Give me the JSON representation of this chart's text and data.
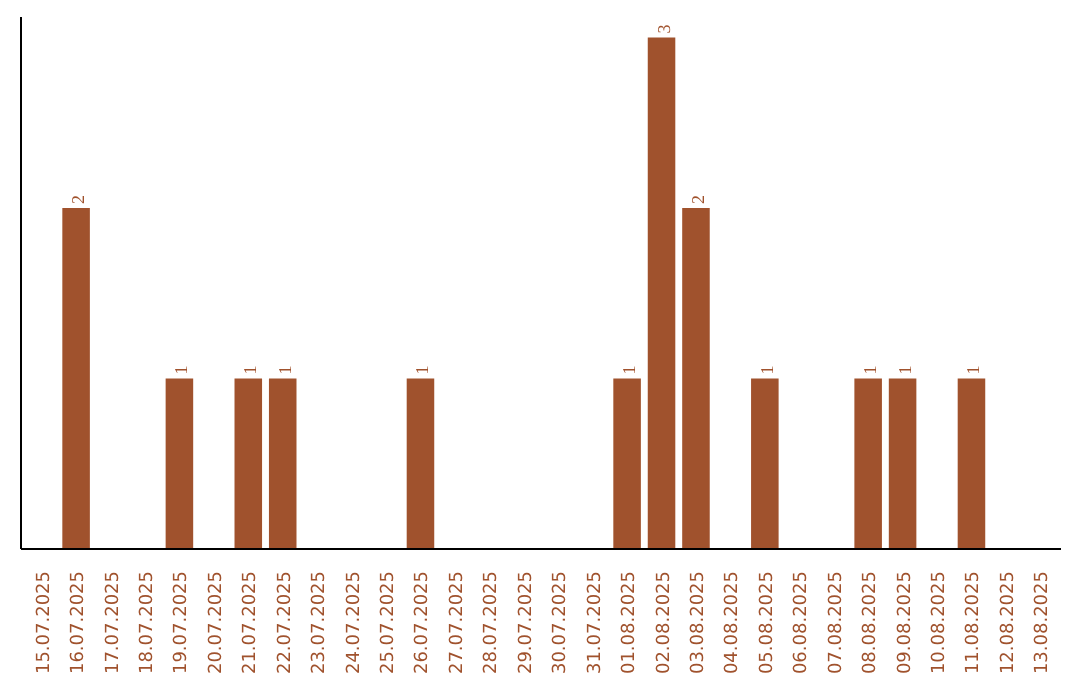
{
  "chart_data": {
    "type": "bar",
    "categories": [
      "15.07.2025",
      "16.07.2025",
      "17.07.2025",
      "18.07.2025",
      "19.07.2025",
      "20.07.2025",
      "21.07.2025",
      "22.07.2025",
      "23.07.2025",
      "24.07.2025",
      "25.07.2025",
      "26.07.2025",
      "27.07.2025",
      "28.07.2025",
      "29.07.2025",
      "30.07.2025",
      "31.07.2025",
      "01.08.2025",
      "02.08.2025",
      "03.08.2025",
      "04.08.2025",
      "05.08.2025",
      "06.08.2025",
      "07.08.2025",
      "08.08.2025",
      "09.08.2025",
      "10.08.2025",
      "11.08.2025",
      "12.08.2025",
      "13.08.2025"
    ],
    "values": [
      0,
      2,
      0,
      0,
      1,
      0,
      1,
      1,
      0,
      0,
      0,
      1,
      0,
      0,
      0,
      0,
      0,
      1,
      3,
      2,
      0,
      1,
      0,
      0,
      1,
      1,
      0,
      1,
      0,
      0
    ],
    "value_labels": [
      null,
      "2",
      null,
      null,
      "1",
      null,
      "1",
      "1",
      null,
      null,
      null,
      "1",
      null,
      null,
      null,
      null,
      null,
      "1",
      "3",
      "2",
      null,
      "1",
      null,
      null,
      "1",
      "1",
      null,
      "1",
      null,
      null
    ],
    "color": "#a0522d",
    "tick_labels": "x",
    "grid": false
  }
}
